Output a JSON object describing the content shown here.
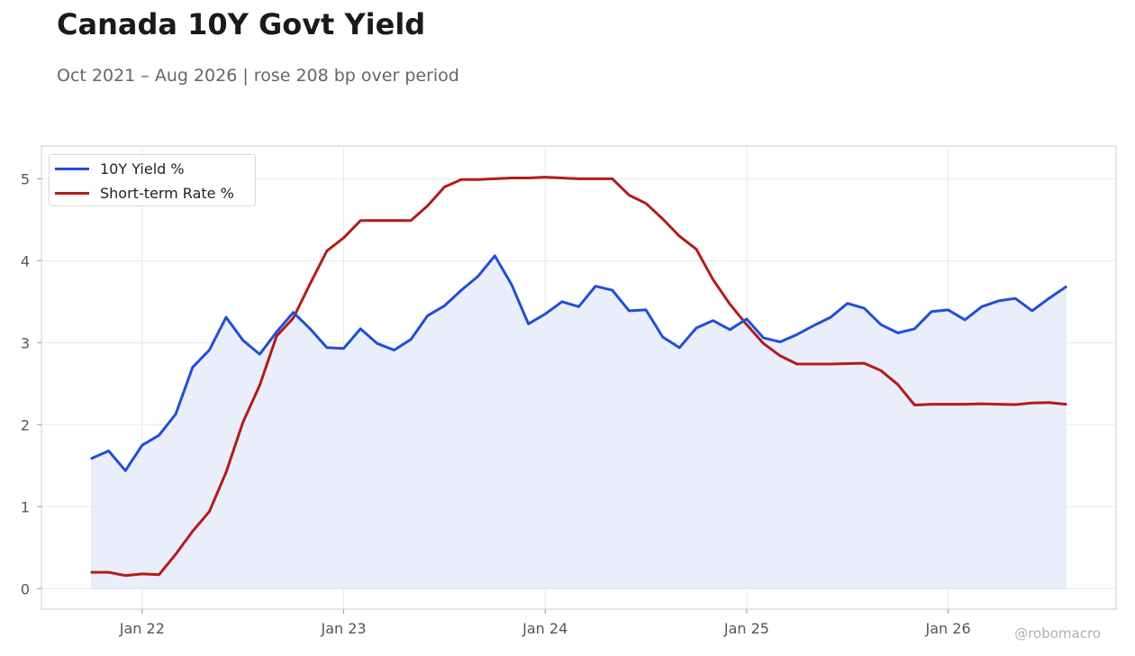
{
  "title": "Canada 10Y Govt Yield",
  "subtitle": "Oct 2021 – Aug 2026 | rose 208 bp over period",
  "watermark": "@robomacro",
  "colors": {
    "yield": "#1f4fd6",
    "rate": "#b31b1b",
    "fill": "#eaeefa",
    "grid": "#e8e8ee",
    "axis": "#cccccc",
    "tick": "#555555"
  },
  "chart_data": {
    "type": "line",
    "title": "Canada 10Y Govt Yield",
    "subtitle": "Oct 2021 – Aug 2026 | rose 208 bp over period",
    "x_start": "2021-10",
    "x_frequency": "monthly",
    "x_tick_labels": [
      "Jan 22",
      "Jan 23",
      "Jan 24",
      "Jan 25",
      "Jan 26"
    ],
    "x_tick_dates": [
      "2022-01",
      "2023-01",
      "2024-01",
      "2025-01",
      "2026-01"
    ],
    "y_ticks": [
      0,
      1,
      2,
      3,
      4,
      5
    ],
    "ylim": [
      -0.25,
      5.4
    ],
    "xlim": [
      "2021-07",
      "2026-11"
    ],
    "grid": true,
    "legend_position": "top-left",
    "series": [
      {
        "name": "10Y Yield %",
        "color": "#1f4fd6",
        "fill": true,
        "values": [
          1.59,
          1.68,
          1.44,
          1.75,
          1.87,
          2.13,
          2.7,
          2.91,
          3.31,
          3.03,
          2.86,
          3.13,
          3.37,
          3.17,
          2.94,
          2.93,
          3.17,
          2.99,
          2.91,
          3.04,
          3.33,
          3.45,
          3.64,
          3.81,
          4.06,
          3.71,
          3.23,
          3.35,
          3.5,
          3.44,
          3.69,
          3.64,
          3.39,
          3.4,
          3.07,
          2.94,
          3.18,
          3.27,
          3.16,
          3.29,
          3.06,
          3.01,
          3.1,
          3.21,
          3.31,
          3.48,
          3.42,
          3.22,
          3.12,
          3.17,
          3.38,
          3.4,
          3.28,
          3.44,
          3.51,
          3.54,
          3.39,
          3.54,
          3.68
        ]
      },
      {
        "name": "Short-term Rate %",
        "color": "#b31b1b",
        "fill": false,
        "values": [
          0.2,
          0.2,
          0.16,
          0.18,
          0.17,
          0.42,
          0.7,
          0.94,
          1.42,
          2.03,
          2.48,
          3.08,
          3.3,
          3.72,
          4.12,
          4.28,
          4.49,
          4.49,
          4.49,
          4.49,
          4.67,
          4.9,
          4.99,
          4.99,
          5.0,
          5.01,
          5.01,
          5.02,
          5.01,
          5.0,
          5.0,
          5.0,
          4.8,
          4.7,
          4.51,
          4.3,
          4.14,
          3.77,
          3.47,
          3.22,
          2.99,
          2.84,
          2.74,
          2.74,
          2.74,
          2.745,
          2.75,
          2.66,
          2.49,
          2.24,
          2.25,
          2.25,
          2.25,
          2.255,
          2.25,
          2.245,
          2.265,
          2.27,
          2.25
        ]
      }
    ]
  }
}
